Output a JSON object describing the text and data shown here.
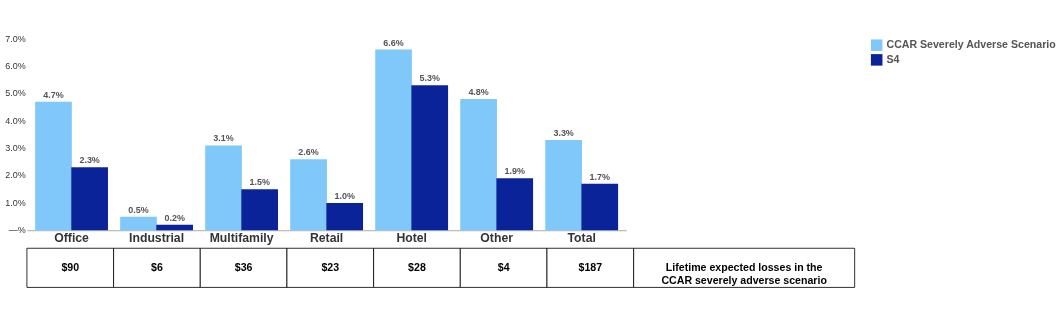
{
  "chart_data": {
    "type": "bar",
    "categories": [
      "Office",
      "Industrial",
      "Multifamily",
      "Retail",
      "Hotel",
      "Other",
      "Total"
    ],
    "series": [
      {
        "name": "CCAR Severely Adverse Scenario",
        "color": "#80c8fa",
        "values": [
          4.7,
          0.5,
          3.1,
          2.6,
          6.6,
          4.8,
          3.3
        ],
        "value_labels": [
          "4.7%",
          "0.5%",
          "3.1%",
          "2.6%",
          "6.6%",
          "4.8%",
          "3.3%"
        ]
      },
      {
        "name": "S4",
        "color": "#0b2399",
        "values": [
          2.3,
          0.2,
          1.5,
          1.0,
          5.3,
          1.9,
          1.7
        ],
        "value_labels": [
          "2.3%",
          "0.2%",
          "1.5%",
          "1.0%",
          "5.3%",
          "1.9%",
          "1.7%"
        ]
      }
    ],
    "ylim": [
      0,
      7
    ],
    "yticks": [
      {
        "value": 0,
        "label": "—%"
      },
      {
        "value": 1,
        "label": "1.0%"
      },
      {
        "value": 2,
        "label": "2.0%"
      },
      {
        "value": 3,
        "label": "3.0%"
      },
      {
        "value": 4,
        "label": "4.0%"
      },
      {
        "value": 5,
        "label": "5.0%"
      },
      {
        "value": 6,
        "label": "6.0%"
      },
      {
        "value": 7,
        "label": "7.0%"
      }
    ],
    "grid": false,
    "legend": "right",
    "annotations": [
      "$90",
      "$6",
      "$36",
      "$23",
      "$28",
      "$4",
      "$187",
      "Lifetime expected losses in the CCAR severely adverse scenario"
    ]
  }
}
